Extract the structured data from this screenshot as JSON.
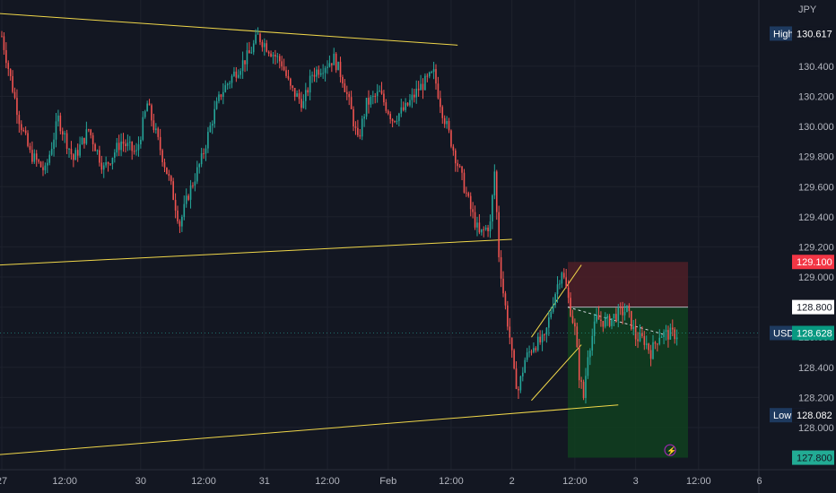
{
  "chart_data": {
    "type": "candlestick",
    "symbol": "USDJPY",
    "currency_label": "JPY",
    "ylim": [
      127.72,
      130.84
    ],
    "y_ticks": [
      "130.400",
      "130.200",
      "130.000",
      "129.800",
      "129.600",
      "129.400",
      "129.200",
      "129.000",
      "128.800",
      "128.600",
      "128.400",
      "128.200",
      "128.000"
    ],
    "y_tick_values": [
      130.4,
      130.2,
      130.0,
      129.8,
      129.6,
      129.4,
      129.2,
      129.0,
      128.8,
      128.6,
      128.4,
      128.2,
      128.0
    ],
    "x_ticks": [
      "27",
      "12:00",
      "30",
      "12:00",
      "31",
      "12:00",
      "Feb",
      "12:00",
      "2",
      "12:00",
      "3",
      "12:00",
      "6"
    ],
    "x_tick_index": [
      0,
      29,
      64,
      93,
      121,
      150,
      178,
      207,
      235,
      264,
      292,
      321,
      349
    ],
    "bar_count": 312,
    "price_path": [
      [
        0,
        130.6
      ],
      [
        4,
        130.32
      ],
      [
        8,
        130.05
      ],
      [
        13,
        129.82
      ],
      [
        20,
        129.7
      ],
      [
        26,
        130.05
      ],
      [
        33,
        129.78
      ],
      [
        40,
        129.98
      ],
      [
        47,
        129.72
      ],
      [
        55,
        129.9
      ],
      [
        62,
        129.82
      ],
      [
        67,
        130.15
      ],
      [
        72,
        129.9
      ],
      [
        78,
        129.6
      ],
      [
        82,
        129.35
      ],
      [
        86,
        129.55
      ],
      [
        92,
        129.78
      ],
      [
        97,
        130.05
      ],
      [
        101,
        130.22
      ],
      [
        107,
        130.35
      ],
      [
        114,
        130.48
      ],
      [
        118,
        130.6
      ],
      [
        124,
        130.5
      ],
      [
        129,
        130.42
      ],
      [
        133,
        130.25
      ],
      [
        139,
        130.15
      ],
      [
        143,
        130.35
      ],
      [
        148,
        130.4
      ],
      [
        153,
        130.45
      ],
      [
        157,
        130.32
      ],
      [
        161,
        130.1
      ],
      [
        164,
        129.9
      ],
      [
        168,
        130.15
      ],
      [
        174,
        130.22
      ],
      [
        180,
        130.05
      ],
      [
        186,
        130.12
      ],
      [
        192,
        130.25
      ],
      [
        199,
        130.35
      ],
      [
        203,
        130.1
      ],
      [
        207,
        129.9
      ],
      [
        212,
        129.65
      ],
      [
        216,
        129.45
      ],
      [
        220,
        129.28
      ],
      [
        225,
        129.35
      ],
      [
        227,
        129.7
      ],
      [
        229,
        129.15
      ],
      [
        231,
        128.9
      ],
      [
        234,
        128.6
      ],
      [
        236,
        128.35
      ],
      [
        238,
        128.25
      ],
      [
        241,
        128.45
      ],
      [
        245,
        128.55
      ],
      [
        250,
        128.58
      ],
      [
        254,
        128.85
      ],
      [
        258,
        129.05
      ],
      [
        261,
        128.85
      ],
      [
        264,
        128.65
      ],
      [
        266,
        128.35
      ],
      [
        268,
        128.2
      ],
      [
        270,
        128.5
      ],
      [
        274,
        128.72
      ],
      [
        279,
        128.7
      ],
      [
        283,
        128.75
      ],
      [
        288,
        128.78
      ],
      [
        292,
        128.6
      ],
      [
        296,
        128.58
      ],
      [
        299,
        128.5
      ],
      [
        303,
        128.62
      ]
    ],
    "extremes": [
      {
        "label": "High",
        "value": "130.617"
      },
      {
        "label": "Low",
        "value": "128.082"
      }
    ],
    "current_price": {
      "label": "USDJPY",
      "value": "128.628"
    },
    "position": {
      "entry": "128.800",
      "stop": "129.100",
      "target": "127.800",
      "entry_val": 128.8,
      "stop_val": 129.1,
      "target_val": 127.8,
      "start_index": 262,
      "end_index": 312
    },
    "colors": {
      "background": "#131722",
      "up": "#26a69a",
      "down": "#ef5350",
      "trendline": "#f0d74a",
      "stop_zone": "#4d1f27",
      "target_zone": "#113f1f",
      "target_badge": "#089981",
      "stop_badge": "#f23645",
      "marker_badge": "#1e3a5f"
    }
  }
}
